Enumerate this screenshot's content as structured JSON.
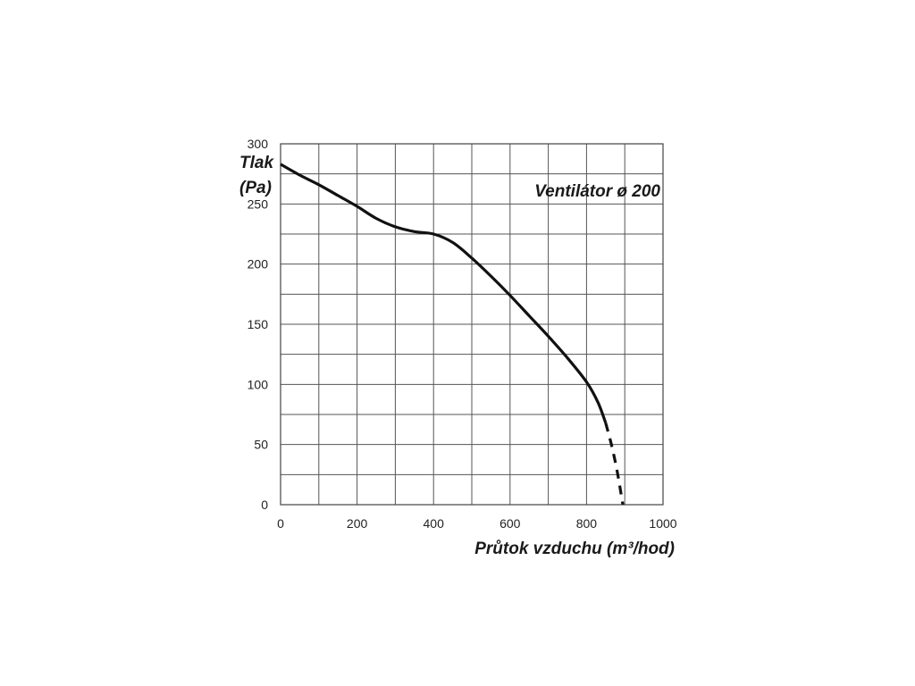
{
  "chart_data": {
    "type": "line",
    "title": "Ventilátor ø 200",
    "ylabel_line1": "Tlak",
    "ylabel_line2": "(Pa)",
    "xlabel": "Průtok vzduchu (m³/hod)",
    "xlim": [
      0,
      1000
    ],
    "ylim": [
      0,
      300
    ],
    "x_ticks": [
      0,
      200,
      400,
      600,
      800,
      1000
    ],
    "y_ticks": [
      0,
      50,
      100,
      150,
      200,
      250,
      300
    ],
    "x_tick_labels": [
      "0",
      "200",
      "400",
      "600",
      "800",
      "1000"
    ],
    "y_tick_labels": [
      "0",
      "50",
      "100",
      "150",
      "200",
      "250",
      "300"
    ],
    "grid": true,
    "grid_x_step": 100,
    "grid_y_step": 25,
    "series": [
      {
        "style": "solid",
        "x": [
          0,
          50,
          100,
          150,
          200,
          250,
          300,
          350,
          400,
          450,
          500,
          550,
          600,
          650,
          700,
          750,
          800,
          830,
          850
        ],
        "y": [
          283,
          274,
          266,
          257,
          248,
          238,
          231,
          227,
          225,
          218,
          205,
          190,
          174,
          157,
          140,
          122,
          102,
          85,
          68
        ]
      },
      {
        "style": "dashed",
        "x": [
          850,
          865,
          880,
          895
        ],
        "y": [
          68,
          50,
          28,
          0
        ]
      }
    ]
  }
}
